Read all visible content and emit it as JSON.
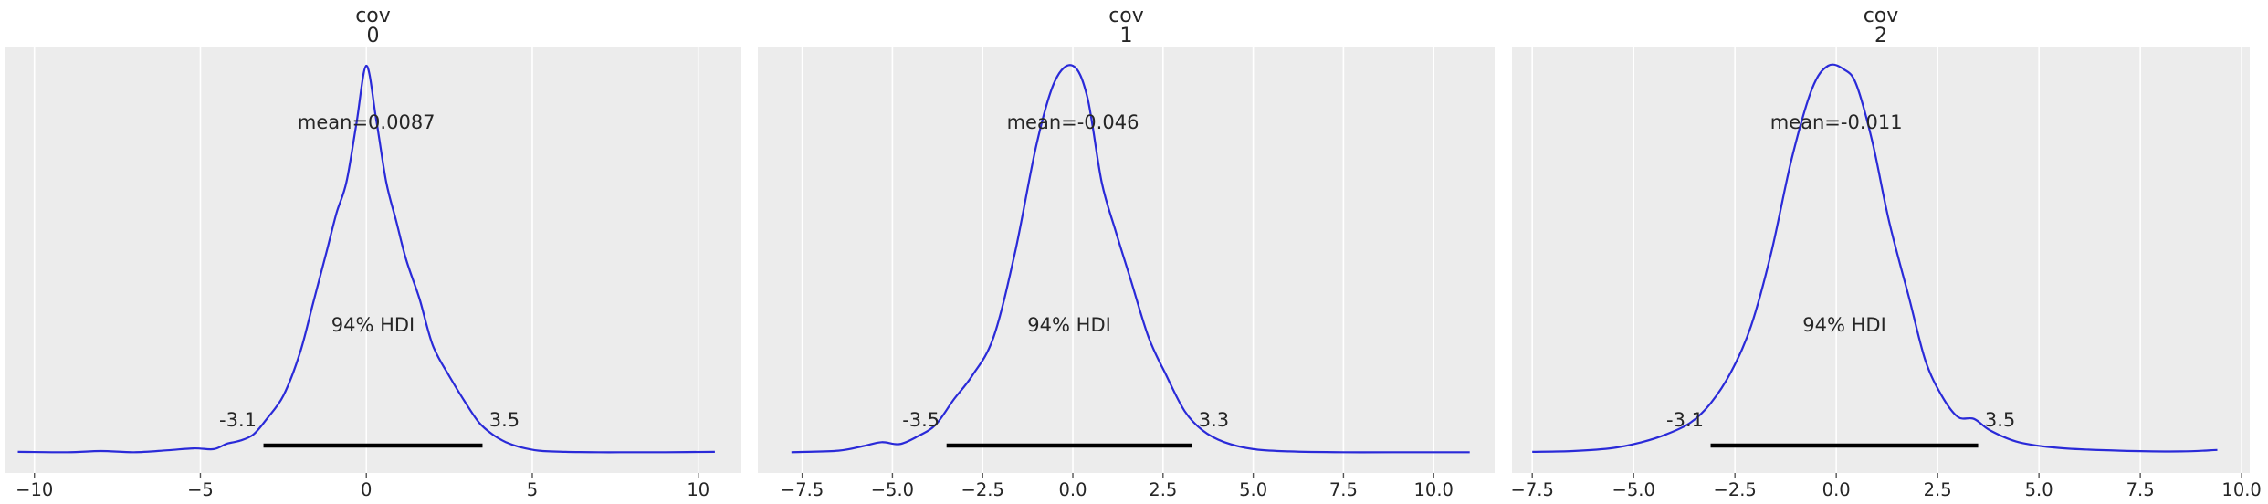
{
  "figure": {
    "background": "#ffffff",
    "axes_facecolor": "#ececec",
    "grid_color": "#ffffff",
    "curve_color": "#2a2ad8",
    "hdi_color": "#000000",
    "text_color": "#262626"
  },
  "chart_data": [
    {
      "type": "line",
      "title_line1": "cov",
      "title_line2": "0",
      "mean_label": "mean=0.0087",
      "hdi_label": "94% HDI",
      "hdi_low_label": "-3.1",
      "hdi_high_label": "3.5",
      "hdi": [
        -3.1,
        3.5
      ],
      "xlim": [
        -10.9,
        11.3
      ],
      "xticks": [
        -10,
        -5,
        0,
        5,
        10
      ],
      "xtick_labels": [
        "−10",
        "−5",
        "0",
        "5",
        "10"
      ],
      "grid": true,
      "x": [
        -10.5,
        -9.0,
        -8.0,
        -7.0,
        -6.0,
        -5.2,
        -4.6,
        -4.2,
        -3.8,
        -3.4,
        -3.0,
        -2.5,
        -2.0,
        -1.6,
        -1.2,
        -0.9,
        -0.6,
        -0.3,
        0.0,
        0.3,
        0.6,
        0.9,
        1.2,
        1.6,
        2.0,
        2.5,
        3.0,
        3.4,
        3.8,
        4.2,
        4.6,
        5.2,
        6.0,
        7.0,
        8.0,
        9.0,
        10.5
      ],
      "density": [
        0.005,
        0.004,
        0.007,
        0.004,
        0.009,
        0.014,
        0.012,
        0.026,
        0.034,
        0.05,
        0.09,
        0.15,
        0.26,
        0.39,
        0.52,
        0.62,
        0.7,
        0.85,
        1.0,
        0.86,
        0.7,
        0.6,
        0.5,
        0.4,
        0.28,
        0.2,
        0.13,
        0.08,
        0.05,
        0.03,
        0.018,
        0.008,
        0.005,
        0.004,
        0.004,
        0.004,
        0.005
      ]
    },
    {
      "type": "line",
      "title_line1": "cov",
      "title_line2": "1",
      "mean_label": "mean=-0.046",
      "hdi_label": "94% HDI",
      "hdi_low_label": "-3.5",
      "hdi_high_label": "3.3",
      "hdi": [
        -3.5,
        3.3
      ],
      "xlim": [
        -8.73,
        11.69
      ],
      "xticks": [
        -7.5,
        -5.0,
        -2.5,
        0.0,
        2.5,
        5.0,
        7.5,
        10.0
      ],
      "xtick_labels": [
        "−7.5",
        "−5.0",
        "−2.5",
        "0.0",
        "2.5",
        "5.0",
        "7.5",
        "10.0"
      ],
      "grid": true,
      "x": [
        -7.8,
        -6.5,
        -5.8,
        -5.3,
        -4.8,
        -4.3,
        -3.8,
        -3.3,
        -2.8,
        -2.2,
        -1.6,
        -1.0,
        -0.5,
        0.0,
        0.4,
        0.8,
        1.2,
        1.6,
        2.1,
        2.6,
        3.1,
        3.6,
        4.2,
        5.0,
        6.0,
        7.5,
        9.0,
        11.0
      ],
      "density": [
        0.004,
        0.008,
        0.02,
        0.03,
        0.025,
        0.045,
        0.075,
        0.14,
        0.2,
        0.3,
        0.52,
        0.8,
        0.96,
        1.0,
        0.92,
        0.7,
        0.57,
        0.45,
        0.3,
        0.2,
        0.11,
        0.06,
        0.03,
        0.012,
        0.006,
        0.004,
        0.004,
        0.004
      ]
    },
    {
      "type": "line",
      "title_line1": "cov",
      "title_line2": "2",
      "mean_label": "mean=-0.011",
      "hdi_label": "94% HDI",
      "hdi_low_label": "-3.1",
      "hdi_high_label": "3.5",
      "hdi": [
        -3.1,
        3.5
      ],
      "xlim": [
        -8.0,
        10.2
      ],
      "xticks": [
        -7.5,
        -5.0,
        -2.5,
        0.0,
        2.5,
        5.0,
        7.5,
        10.0
      ],
      "xtick_labels": [
        "−7.5",
        "−5.0",
        "−2.5",
        "0.0",
        "2.5",
        "5.0",
        "7.5",
        "10.0"
      ],
      "grid": true,
      "x": [
        -7.5,
        -6.5,
        -5.5,
        -4.8,
        -4.2,
        -3.6,
        -3.1,
        -2.6,
        -2.1,
        -1.6,
        -1.1,
        -0.6,
        -0.2,
        0.2,
        0.5,
        0.9,
        1.3,
        1.8,
        2.2,
        2.6,
        3.0,
        3.4,
        3.8,
        4.5,
        5.5,
        7.0,
        8.5,
        9.4
      ],
      "density": [
        0.005,
        0.007,
        0.015,
        0.03,
        0.05,
        0.08,
        0.13,
        0.21,
        0.33,
        0.52,
        0.76,
        0.94,
        1.0,
        0.99,
        0.95,
        0.8,
        0.6,
        0.4,
        0.24,
        0.15,
        0.095,
        0.09,
        0.06,
        0.03,
        0.015,
        0.008,
        0.006,
        0.01
      ]
    }
  ]
}
